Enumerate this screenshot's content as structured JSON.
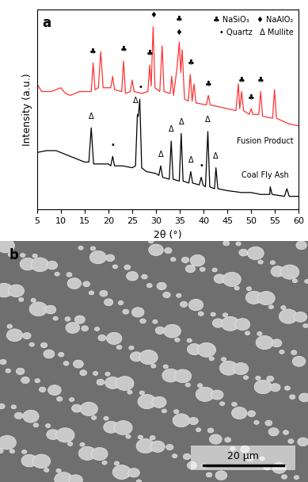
{
  "chart_data": {
    "type": "line",
    "panel_label": "a",
    "x_label": "2θ (°)",
    "y_label": "Intensity (a.u.)",
    "xlim": [
      5,
      60
    ],
    "xticks": [
      5,
      10,
      15,
      20,
      25,
      30,
      35,
      40,
      45,
      50,
      55,
      60
    ],
    "ylim": [
      0,
      105
    ],
    "yticks": [],
    "tick_labels": "x",
    "key": [
      "♣ NaSiO₃",
      "♦ NaAlO₂",
      "• Quartz",
      "Δ Mullite"
    ],
    "series": [
      {
        "name": "Fusion Product",
        "color": "#ff3333",
        "x": [
          5,
          6,
          8,
          10,
          11,
          12,
          14,
          16,
          16.4,
          16.8,
          17.2,
          17.9,
          18.4,
          18.9,
          20.5,
          20.9,
          21.3,
          22.8,
          23.2,
          23.6,
          24.6,
          25,
          25.4,
          27,
          28.3,
          28.7,
          29,
          29.4,
          29.8,
          30.8,
          31.3,
          31.7,
          33,
          33.3,
          33.7,
          34.4,
          34.9,
          35.2,
          35.5,
          36,
          36.8,
          37.2,
          37.6,
          38,
          38.4,
          40.6,
          41,
          41.4,
          46.8,
          47.3,
          47.6,
          48,
          48.4,
          49.6,
          50,
          50.4,
          51.6,
          52,
          52.4,
          54.5,
          54.9,
          55.3,
          58,
          60
        ],
        "values": [
          66,
          62,
          62,
          64,
          61,
          60,
          62,
          62,
          62,
          77,
          63,
          64,
          83,
          64,
          64,
          70,
          63,
          62,
          78,
          61,
          62,
          68,
          62,
          61,
          62,
          76,
          65,
          96,
          64,
          62,
          86,
          62,
          61,
          70,
          60,
          74,
          88,
          72,
          84,
          58,
          57,
          71,
          57,
          66,
          56,
          55,
          60,
          55,
          52,
          66,
          53,
          62,
          52,
          50,
          53,
          50,
          50,
          62,
          49,
          48,
          63,
          48,
          45,
          44
        ]
      },
      {
        "name": "Coal Fly Ash",
        "color": "#000000",
        "x": [
          5,
          7,
          9,
          11,
          13,
          15,
          15.9,
          16.4,
          16.9,
          18,
          20,
          20.5,
          20.9,
          21.3,
          23,
          25,
          25.7,
          26.1,
          26.3,
          26.6,
          27,
          28,
          30,
          30.6,
          31,
          31.4,
          32.8,
          33.2,
          33.6,
          34.9,
          35.3,
          35.7,
          36.9,
          37.3,
          37.7,
          39.1,
          39.5,
          39.9,
          40.4,
          40.9,
          41.3,
          42.3,
          42.6,
          43,
          45,
          48,
          50,
          52,
          53.9,
          54,
          54.4,
          57,
          57.5,
          58,
          60
        ],
        "values": [
          30,
          31,
          31,
          29,
          27,
          25,
          25,
          43,
          24,
          24,
          24,
          23,
          28,
          23,
          23,
          22,
          23,
          50,
          49,
          58,
          22,
          20,
          19,
          18,
          23,
          17,
          16,
          36,
          16,
          15,
          40,
          15,
          14,
          20,
          14,
          13,
          17,
          13,
          12,
          41,
          12,
          11,
          22,
          11,
          10,
          9,
          9,
          8,
          8,
          12,
          8,
          7,
          11,
          7,
          7
        ]
      }
    ],
    "annotations": [
      {
        "text": "♣",
        "x": 16.8,
        "y": 81
      },
      {
        "text": "♣",
        "x": 23.2,
        "y": 82
      },
      {
        "text": "♣",
        "x": 28.7,
        "y": 80
      },
      {
        "text": "♦",
        "x": 29.4,
        "y": 100
      },
      {
        "text": "♣",
        "x": 34.8,
        "y": 98
      },
      {
        "text": "♦",
        "x": 34.8,
        "y": 91
      },
      {
        "text": "♣",
        "x": 37.3,
        "y": 75
      },
      {
        "text": "♣",
        "x": 41,
        "y": 64
      },
      {
        "text": "♣",
        "x": 48,
        "y": 66
      },
      {
        "text": "♣",
        "x": 50,
        "y": 57
      },
      {
        "text": "♣",
        "x": 52,
        "y": 66
      },
      {
        "text": "Δ",
        "x": 16.4,
        "y": 47
      },
      {
        "text": "•",
        "x": 20.9,
        "y": 32
      },
      {
        "text": "Δ",
        "x": 25.8,
        "y": 55
      },
      {
        "text": "•",
        "x": 26.7,
        "y": 62
      },
      {
        "text": "Δ",
        "x": 31,
        "y": 27
      },
      {
        "text": "Δ",
        "x": 33.2,
        "y": 40
      },
      {
        "text": "Δ",
        "x": 35.3,
        "y": 44
      },
      {
        "text": "Δ",
        "x": 37.3,
        "y": 24
      },
      {
        "text": "•",
        "x": 39.5,
        "y": 21
      },
      {
        "text": "Δ",
        "x": 40.9,
        "y": 45
      },
      {
        "text": "Δ",
        "x": 42.6,
        "y": 26
      }
    ]
  },
  "image": {
    "panel_label": "b",
    "scale_bar": "20 μm"
  }
}
